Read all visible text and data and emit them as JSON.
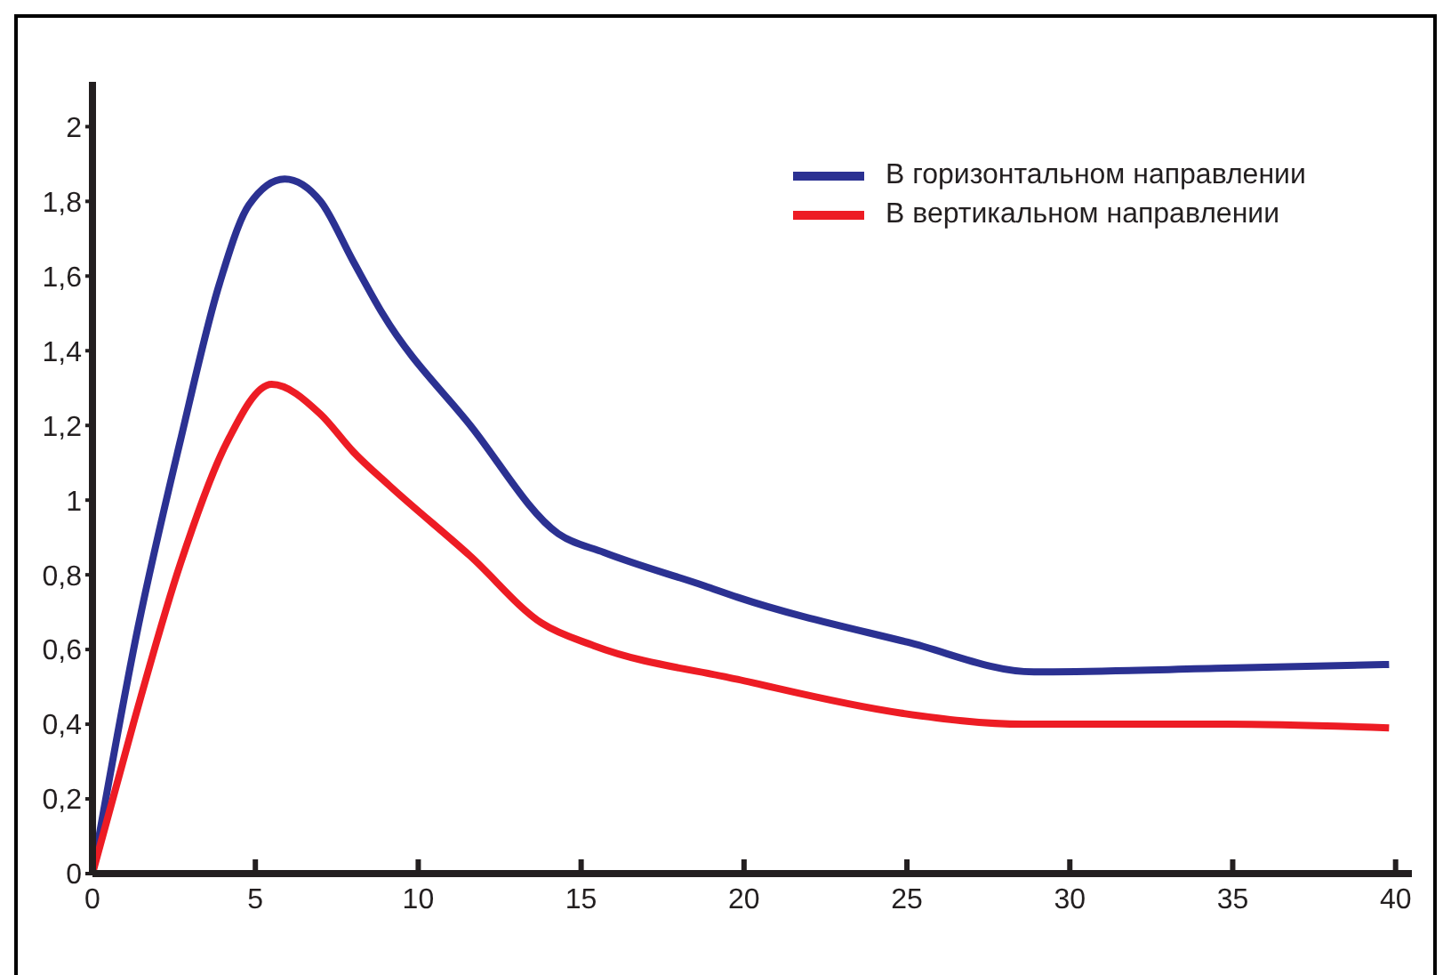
{
  "chart_data": {
    "type": "line",
    "xlim": [
      0,
      40.5
    ],
    "xticks": [
      0,
      5,
      10,
      15,
      20,
      25,
      30,
      35,
      40
    ],
    "ylim": [
      0,
      2.12
    ],
    "yticks": [
      0,
      {
        "value": 0.2,
        "label": "0,2"
      },
      {
        "value": 0.4,
        "label": "0,4"
      },
      {
        "value": 0.6,
        "label": "0,6"
      },
      {
        "value": 0.8,
        "label": "0,8"
      },
      1,
      {
        "value": 1.2,
        "label": "1,2"
      },
      {
        "value": 1.4,
        "label": "1,4"
      },
      {
        "value": 1.6,
        "label": "1,6"
      },
      {
        "value": 1.8,
        "label": "1,8"
      },
      2
    ],
    "grid": false,
    "legend": "top right",
    "marker": "none",
    "line_style": "solid",
    "series": [
      {
        "name": "В горизонтальном направлении",
        "color": "#2b3192",
        "x": [
          0,
          1.4,
          2.7,
          3.9,
          4.8,
          5.9,
          7,
          8,
          8.9,
          11.6,
          14.3,
          15.7,
          18.8,
          19.8,
          25,
          28.9,
          34.8,
          39.8
        ],
        "values": [
          0,
          0.66,
          1.16,
          1.58,
          1.79,
          1.86,
          1.8,
          1.64,
          1.5,
          1.2,
          0.91,
          0.86,
          0.77,
          0.74,
          0.62,
          0.54,
          0.55,
          0.56
        ]
      },
      {
        "name": "В вертикальном направлении",
        "color": "#ed1c24",
        "x": [
          0,
          1.25,
          2.7,
          4.1,
          5.5,
          7,
          8,
          9.1,
          11.6,
          13.8,
          15.4,
          19.8,
          24.8,
          28.6,
          34.8,
          39.8
        ],
        "values": [
          0,
          0.4,
          0.83,
          1.15,
          1.31,
          1.23,
          1.13,
          1.04,
          0.85,
          0.67,
          0.61,
          0.52,
          0.43,
          0.4,
          0.4,
          0.39
        ]
      }
    ]
  }
}
